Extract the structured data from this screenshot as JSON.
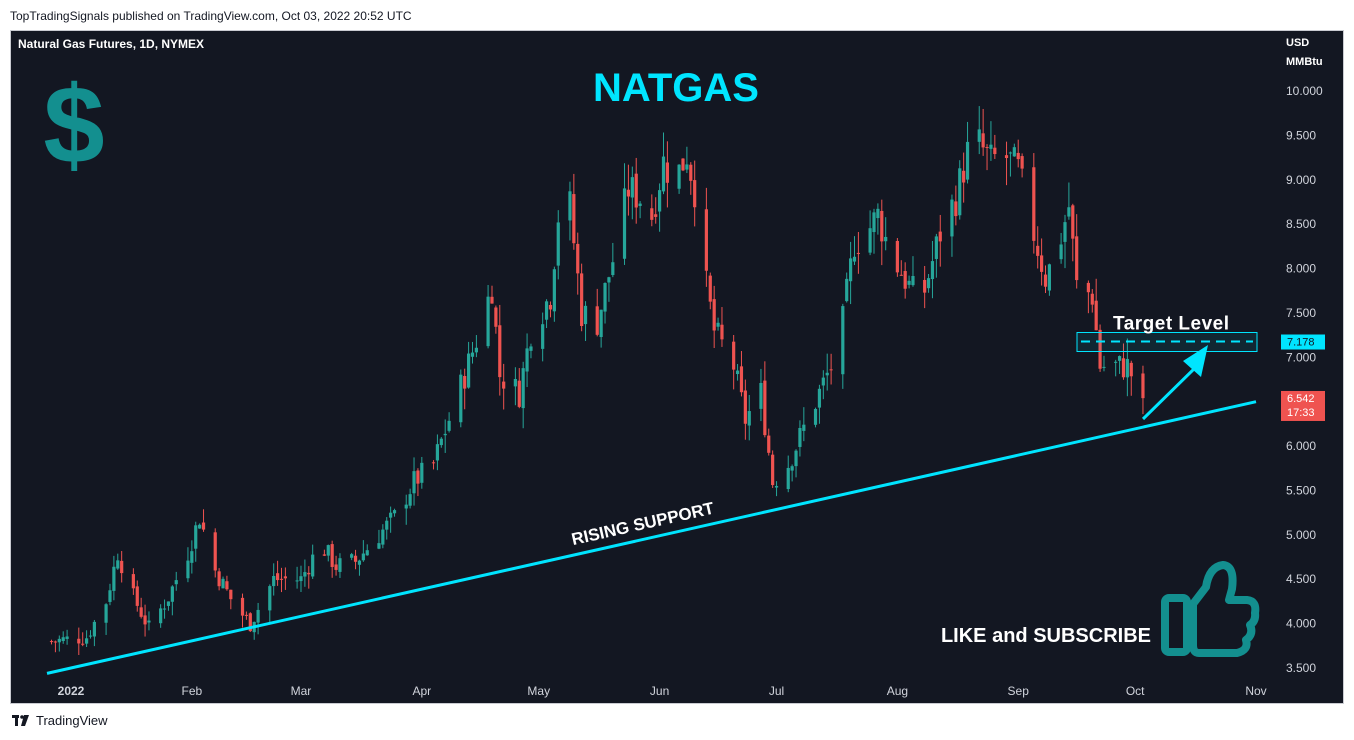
{
  "header": {
    "published_line": "TopTradingSignals published on TradingView.com, Oct 03, 2022 20:52 UTC"
  },
  "footer": {
    "brand": "TradingView"
  },
  "chart_data": {
    "type": "candlestick",
    "symbol_line": "Natural Gas Futures, 1D, NYMEX",
    "title": "NATGAS",
    "currency": "USD",
    "unit": "MMBtu",
    "ylim": [
      3.3,
      10.35
    ],
    "y_ticks": [
      "10.000",
      "9.500",
      "9.000",
      "8.500",
      "8.000",
      "7.500",
      "7.000",
      "6.500",
      "6.000",
      "5.500",
      "5.000",
      "4.500",
      "4.000",
      "3.500"
    ],
    "x_ticks": [
      {
        "label": "2022",
        "bold": true,
        "date": "2022-01-01"
      },
      {
        "label": "Feb",
        "date": "2022-02-01"
      },
      {
        "label": "Mar",
        "date": "2022-03-01"
      },
      {
        "label": "Apr",
        "date": "2022-04-01"
      },
      {
        "label": "May",
        "date": "2022-05-01"
      },
      {
        "label": "Jun",
        "date": "2022-06-01"
      },
      {
        "label": "Jul",
        "date": "2022-07-01"
      },
      {
        "label": "Aug",
        "date": "2022-08-01"
      },
      {
        "label": "Sep",
        "date": "2022-09-01"
      },
      {
        "label": "Oct",
        "date": "2022-10-01"
      },
      {
        "label": "Nov",
        "date": "2022-11-01"
      }
    ],
    "price_path": [
      [
        "2021-12-27",
        3.8
      ],
      [
        "2022-01-05",
        3.85
      ],
      [
        "2022-01-10",
        4.25
      ],
      [
        "2022-01-13",
        4.8
      ],
      [
        "2022-01-17",
        4.3
      ],
      [
        "2022-01-21",
        3.95
      ],
      [
        "2022-01-26",
        4.3
      ],
      [
        "2022-01-31",
        4.8
      ],
      [
        "2022-02-03",
        5.2
      ],
      [
        "2022-02-07",
        4.6
      ],
      [
        "2022-02-12",
        4.2
      ],
      [
        "2022-02-16",
        4.0
      ],
      [
        "2022-02-22",
        4.5
      ],
      [
        "2022-03-01",
        4.5
      ],
      [
        "2022-03-06",
        4.9
      ],
      [
        "2022-03-10",
        4.65
      ],
      [
        "2022-03-15",
        4.7
      ],
      [
        "2022-03-21",
        5.0
      ],
      [
        "2022-03-25",
        5.2
      ],
      [
        "2022-03-30",
        5.6
      ],
      [
        "2022-04-04",
        5.8
      ],
      [
        "2022-04-08",
        6.3
      ],
      [
        "2022-04-12",
        6.8
      ],
      [
        "2022-04-15",
        7.2
      ],
      [
        "2022-04-19",
        7.8
      ],
      [
        "2022-04-21",
        6.8
      ],
      [
        "2022-04-26",
        6.6
      ],
      [
        "2022-04-29",
        7.3
      ],
      [
        "2022-05-04",
        7.7
      ],
      [
        "2022-05-06",
        8.6
      ],
      [
        "2022-05-09",
        8.7
      ],
      [
        "2022-05-12",
        7.5
      ],
      [
        "2022-05-16",
        7.4
      ],
      [
        "2022-05-20",
        8.1
      ],
      [
        "2022-05-24",
        8.9
      ],
      [
        "2022-05-27",
        8.8
      ],
      [
        "2022-05-30",
        8.6
      ],
      [
        "2022-06-02",
        9.2
      ],
      [
        "2022-06-05",
        9.0
      ],
      [
        "2022-06-08",
        9.3
      ],
      [
        "2022-06-10",
        8.9
      ],
      [
        "2022-06-13",
        7.8
      ],
      [
        "2022-06-15",
        7.3
      ],
      [
        "2022-06-20",
        6.9
      ],
      [
        "2022-06-23",
        6.3
      ],
      [
        "2022-06-27",
        6.6
      ],
      [
        "2022-06-30",
        5.6
      ],
      [
        "2022-07-04",
        5.8
      ],
      [
        "2022-07-07",
        6.1
      ],
      [
        "2022-07-12",
        6.6
      ],
      [
        "2022-07-17",
        7.1
      ],
      [
        "2022-07-21",
        8.3
      ],
      [
        "2022-07-24",
        8.4
      ],
      [
        "2022-07-27",
        8.6
      ],
      [
        "2022-07-30",
        8.2
      ],
      [
        "2022-08-04",
        7.8
      ],
      [
        "2022-08-07",
        7.6
      ],
      [
        "2022-08-12",
        8.4
      ],
      [
        "2022-08-16",
        8.8
      ],
      [
        "2022-08-19",
        9.3
      ],
      [
        "2022-08-22",
        9.4
      ],
      [
        "2022-08-25",
        9.2
      ],
      [
        "2022-08-28",
        9.3
      ],
      [
        "2022-09-01",
        9.1
      ],
      [
        "2022-09-05",
        8.4
      ],
      [
        "2022-09-08",
        7.9
      ],
      [
        "2022-09-11",
        8.2
      ],
      [
        "2022-09-14",
        8.7
      ],
      [
        "2022-09-16",
        7.8
      ],
      [
        "2022-09-20",
        7.7
      ],
      [
        "2022-09-22",
        6.9
      ],
      [
        "2022-09-25",
        6.9
      ],
      [
        "2022-09-29",
        6.9
      ],
      [
        "2022-10-03",
        6.54
      ]
    ],
    "support_line": {
      "label": "RISING SUPPORT",
      "start": [
        "2022-01-01",
        3.5
      ],
      "end": [
        "2022-11-01",
        6.5
      ]
    },
    "target": {
      "label": "Target Level",
      "value": 7.178,
      "value_label": "7.178"
    },
    "last_price": {
      "value": 6.542,
      "label": "6.542",
      "countdown": "17:33"
    },
    "annotations": {
      "cta": "LIKE and SUBSCRIBE",
      "dollar_glyph": "$"
    },
    "colors": {
      "up": "#26a69a",
      "down": "#ef5350",
      "accent": "#00e5ff",
      "teal": "#138f8f",
      "background": "#131722"
    }
  }
}
